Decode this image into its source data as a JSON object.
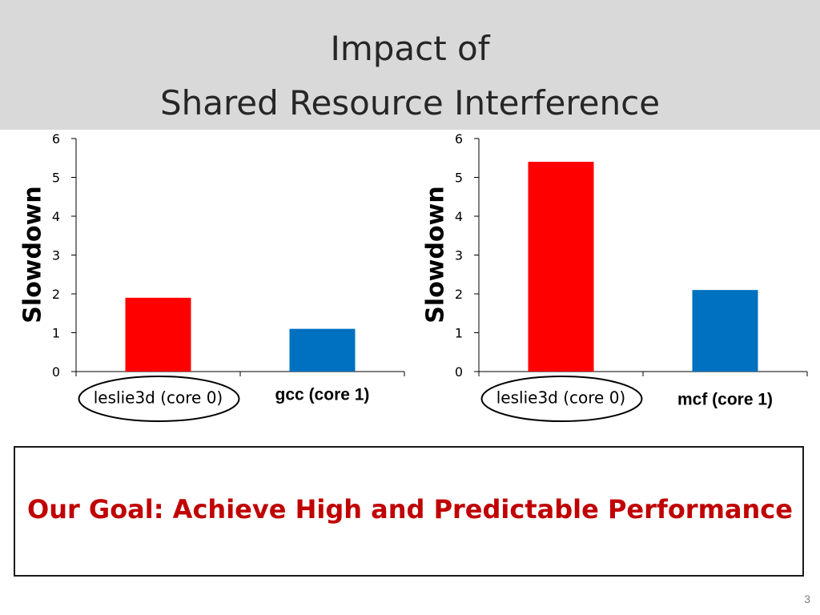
{
  "slide": {
    "title_line1": "Impact of",
    "title_line2": "Shared Resource Interference",
    "goal": "Our Goal: Achieve High and Predictable Performance",
    "page_number": "3"
  },
  "colors": {
    "header_bg": "#d9d9d9",
    "bar_red": "#ff0000",
    "bar_blue": "#0070c0",
    "goal_text": "#c00000"
  },
  "chart_data": [
    {
      "type": "bar",
      "categories": [
        "leslie3d (core 0)",
        "gcc (core 1)"
      ],
      "values": [
        1.9,
        1.1
      ],
      "bar_colors": [
        "#ff0000",
        "#0070c0"
      ],
      "title": "",
      "xlabel": "",
      "ylabel": "Slowdown",
      "ylim": [
        0,
        6
      ],
      "yticks": [
        "0",
        "1",
        "2",
        "3",
        "4",
        "5",
        "6"
      ],
      "grid": false,
      "circled_category": "leslie3d (core 0)"
    },
    {
      "type": "bar",
      "categories": [
        "leslie3d (core 0)",
        "mcf (core 1)"
      ],
      "values": [
        5.4,
        2.1
      ],
      "bar_colors": [
        "#ff0000",
        "#0070c0"
      ],
      "title": "",
      "xlabel": "",
      "ylabel": "Slowdown",
      "ylim": [
        0,
        6
      ],
      "yticks": [
        "0",
        "1",
        "2",
        "3",
        "4",
        "5",
        "6"
      ],
      "grid": false,
      "circled_category": "leslie3d (core 0)"
    }
  ]
}
